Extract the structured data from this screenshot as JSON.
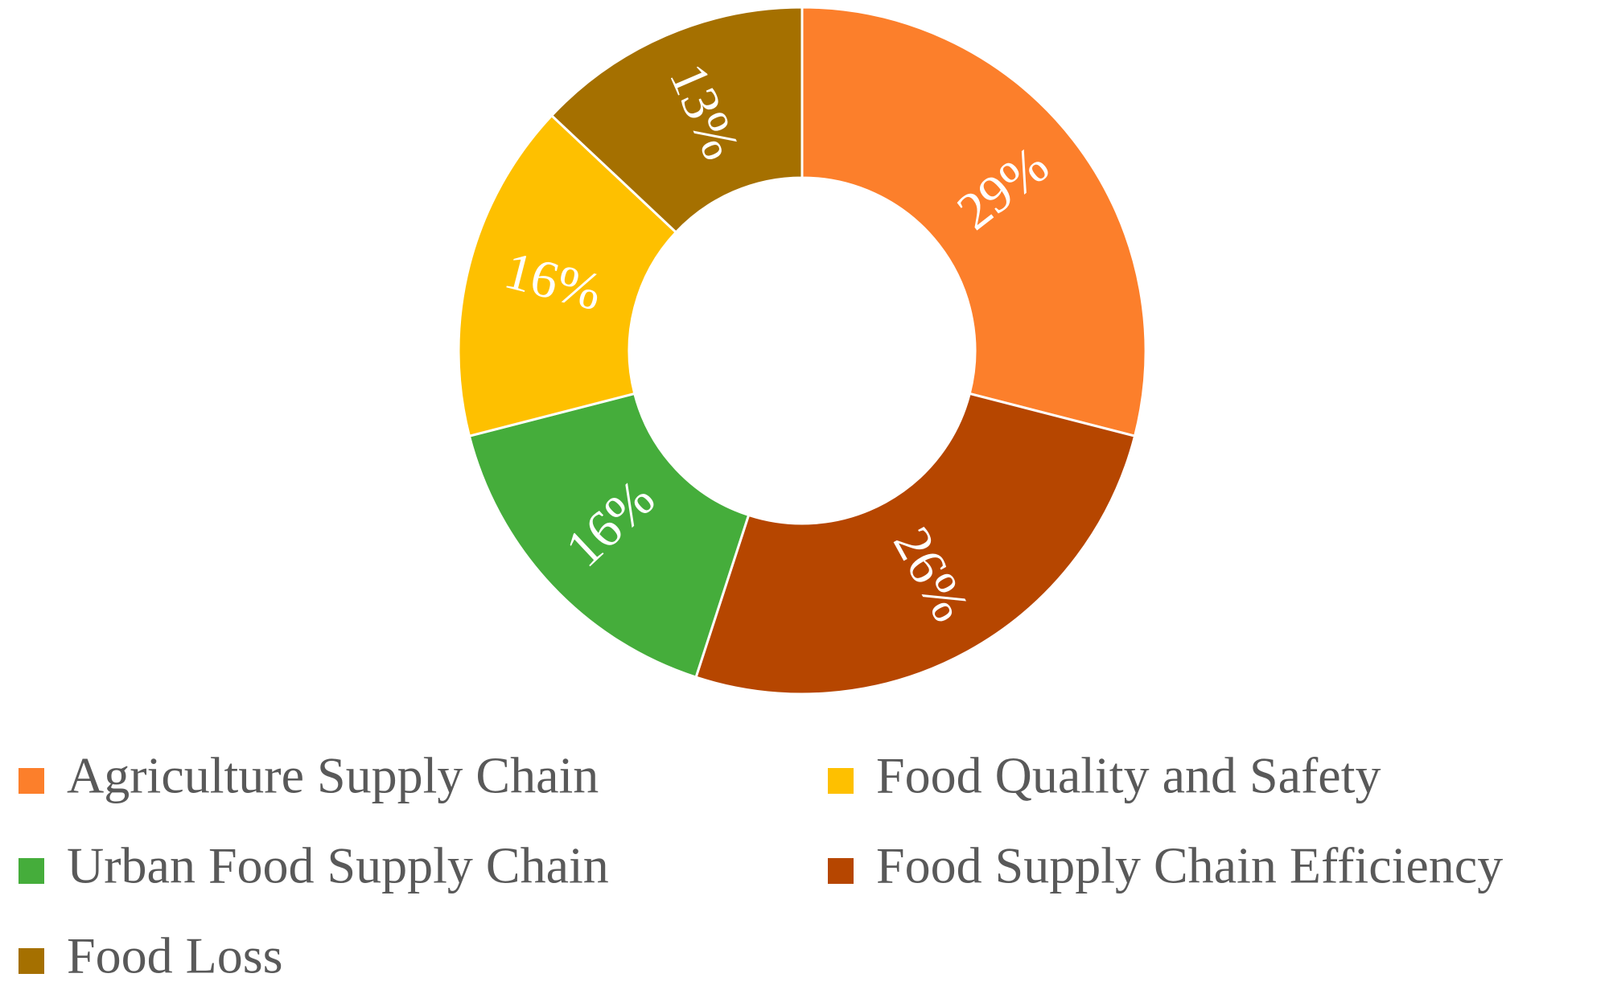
{
  "chart_data": {
    "type": "donut",
    "categories": [
      "Agriculture Supply Chain",
      "Food Supply Chain Efficiency",
      "Urban Food Supply Chain",
      "Food Quality and Safety",
      "Food Loss"
    ],
    "values": [
      29,
      26,
      16,
      16,
      13
    ],
    "value_labels": [
      "29%",
      "26%",
      "16%",
      "16%",
      "13%"
    ],
    "colors": [
      "#fc7f2b",
      "#b64600",
      "#45ad3b",
      "#fec000",
      "#a57000"
    ],
    "legend": "bottom"
  }
}
